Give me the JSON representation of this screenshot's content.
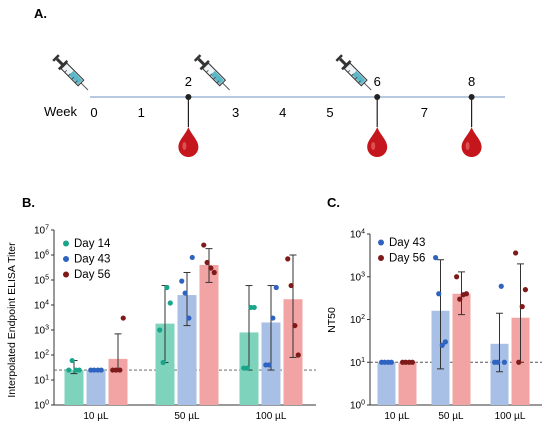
{
  "panel_a": {
    "letter": "A.",
    "axis_label": "Week",
    "weeks": [
      "0",
      "1",
      "2",
      "3",
      "4",
      "5",
      "6",
      "7",
      "8"
    ],
    "dose_weeks": [
      0,
      3,
      6
    ],
    "bleed_weeks": [
      2,
      6,
      8
    ],
    "colors": {
      "axis": "#9fb8d6",
      "blood": "#c4161c",
      "syringe_fluid": "#5bb8c8"
    }
  },
  "chart_data": [
    {
      "panel": "B.",
      "type": "bar",
      "ylabel": "Interpolated Endpoint ELISA Titer",
      "xlabel": "",
      "yscale": "log",
      "ylim": [
        1,
        10000000
      ],
      "ytick_labels": [
        {
          "base": "10",
          "exp": "0"
        },
        {
          "base": "10",
          "exp": "1"
        },
        {
          "base": "10",
          "exp": "2"
        },
        {
          "base": "10",
          "exp": "3"
        },
        {
          "base": "10",
          "exp": "4"
        },
        {
          "base": "10",
          "exp": "5"
        },
        {
          "base": "10",
          "exp": "6"
        },
        {
          "base": "10",
          "exp": "7"
        }
      ],
      "categories": [
        "10 µL",
        "50 µL",
        "100 µL"
      ],
      "threshold": 25,
      "legend_position": "top-left",
      "series": [
        {
          "name": "Day 14",
          "color": "#1aa58a",
          "bar_color": "#7ed3bd",
          "values": [
            25,
            1800,
            800
          ],
          "err_low": [
            18,
            50,
            25
          ],
          "err_high": [
            60,
            60000,
            60000
          ],
          "points": [
            [
              25,
              60,
              25,
              25
            ],
            [
              1000,
              50,
              50000,
              12000
            ],
            [
              30,
              30,
              8000,
              8000
            ]
          ]
        },
        {
          "name": "Day 43",
          "color": "#2f63c0",
          "bar_color": "#a9c0e6",
          "values": [
            25,
            25000,
            2000
          ],
          "err_low": [
            25,
            1500,
            25
          ],
          "err_high": [
            25,
            200000,
            60000
          ],
          "points": [
            [
              25,
              25,
              25,
              25
            ],
            [
              90000,
              30000,
              3000,
              800000
            ],
            [
              40,
              40,
              3000,
              50000
            ]
          ]
        },
        {
          "name": "Day 56",
          "color": "#7e1a1a",
          "bar_color": "#f2a3a3",
          "values": [
            70,
            400000,
            17000
          ],
          "err_low": [
            25,
            80000,
            80
          ],
          "err_high": [
            700,
            1800000,
            1000000
          ],
          "points": [
            [
              25,
              25,
              25,
              3000
            ],
            [
              2500000,
              500000,
              300000,
              200000
            ],
            [
              700000,
              60000,
              1500,
              100
            ]
          ]
        }
      ]
    },
    {
      "panel": "C.",
      "type": "bar",
      "ylabel": "NT50",
      "xlabel": "",
      "yscale": "log",
      "ylim": [
        1,
        10000
      ],
      "ytick_labels": [
        {
          "base": "10",
          "exp": "0"
        },
        {
          "base": "10",
          "exp": "1"
        },
        {
          "base": "10",
          "exp": "2"
        },
        {
          "base": "10",
          "exp": "3"
        },
        {
          "base": "10",
          "exp": "4"
        }
      ],
      "categories": [
        "10 µL",
        "50 µL",
        "100 µL"
      ],
      "threshold": 10,
      "legend_position": "top-left",
      "series": [
        {
          "name": "Day 43",
          "color": "#2f63c0",
          "bar_color": "#a9c0e6",
          "values": [
            10,
            160,
            27
          ],
          "err_low": [
            10,
            7,
            6
          ],
          "err_high": [
            10,
            2500,
            140
          ],
          "points": [
            [
              10,
              10,
              10,
              10
            ],
            [
              2800,
              400,
              25,
              30
            ],
            [
              10,
              10,
              600,
              10
            ]
          ]
        },
        {
          "name": "Day 56",
          "color": "#7e1a1a",
          "bar_color": "#f2a3a3",
          "values": [
            10,
            400,
            110
          ],
          "err_low": [
            10,
            130,
            10
          ],
          "err_high": [
            10,
            1300,
            2000
          ],
          "points": [
            [
              10,
              10,
              10,
              10
            ],
            [
              1000,
              300,
              380,
              400
            ],
            [
              3600,
              10,
              200,
              500
            ]
          ]
        }
      ]
    }
  ]
}
